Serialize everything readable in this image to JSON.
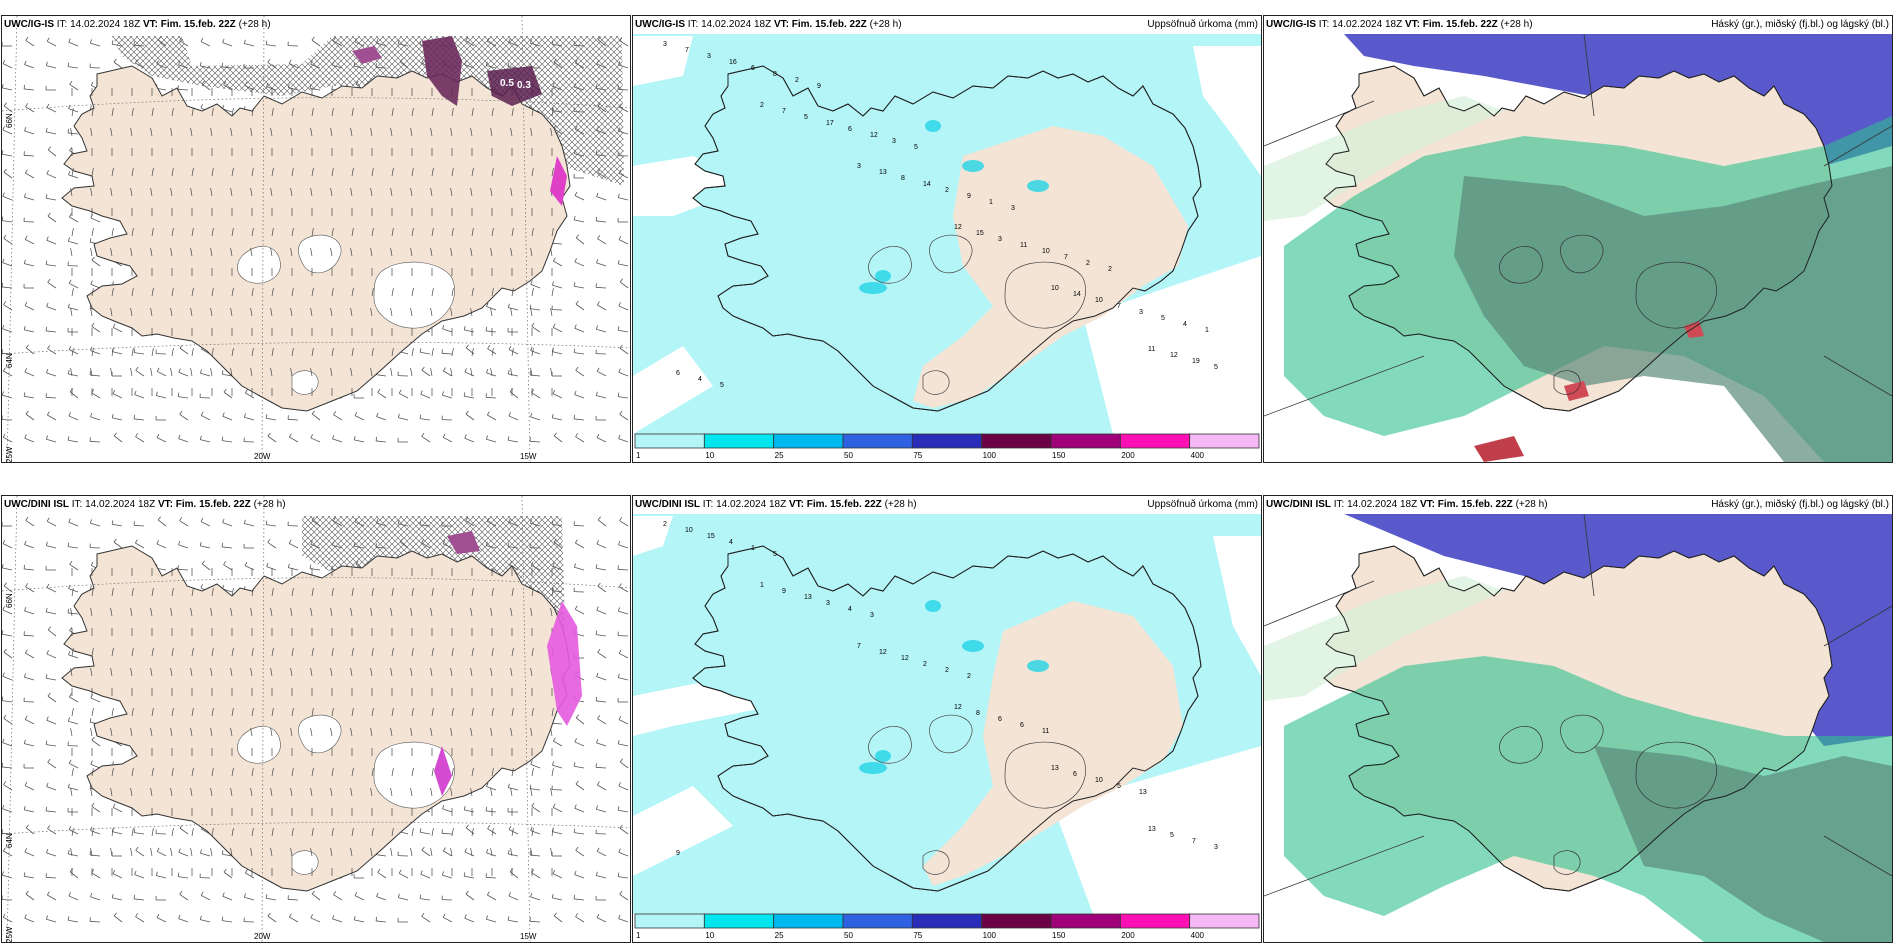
{
  "panels": [
    {
      "id": "p1",
      "model": "UWC/IG-IS",
      "it": "IT: 14.02.2024 18Z",
      "vt_label": "VT:",
      "vt": "Fim. 15.feb. 22Z",
      "lead": "(+28 h)",
      "right_title": "",
      "type": "wind"
    },
    {
      "id": "p2",
      "model": "UWC/IG-IS",
      "it": "IT: 14.02.2024 18Z",
      "vt_label": "VT:",
      "vt": "Fim. 15.feb. 22Z",
      "lead": "(+28 h)",
      "right_title": "Uppsöfnuð úrkoma (mm)",
      "type": "precip"
    },
    {
      "id": "p3",
      "model": "UWC/IG-IS",
      "it": "IT: 14.02.2024 18Z",
      "vt_label": "VT:",
      "vt": "Fim. 15.feb. 22Z",
      "lead": "(+28 h)",
      "right_title": "Háský (gr.), miðský (fj.bl.) og lágský (bl.)",
      "type": "cloud"
    },
    {
      "id": "p4",
      "model": "UWC/DINI ISL",
      "it": "IT: 14.02.2024 18Z",
      "vt_label": "VT:",
      "vt": "Fim. 15.feb. 22Z",
      "lead": "(+28 h)",
      "right_title": "",
      "type": "wind"
    },
    {
      "id": "p5",
      "model": "UWC/DINI ISL",
      "it": "IT: 14.02.2024 18Z",
      "vt_label": "VT:",
      "vt": "Fim. 15.feb. 22Z",
      "lead": "(+28 h)",
      "right_title": "Uppsöfnuð úrkoma (mm)",
      "type": "precip"
    },
    {
      "id": "p6",
      "model": "UWC/DINI ISL",
      "it": "IT: 14.02.2024 18Z",
      "vt_label": "VT:",
      "vt": "Fim. 15.feb. 22Z",
      "lead": "(+28 h)",
      "right_title": "Háský (gr.), miðský (fj.bl.) og lágský (bl.)",
      "type": "cloud"
    }
  ],
  "axis_labels": {
    "lat66": "66N",
    "lat64": "64N",
    "lon25": "25W",
    "lon20": "20W",
    "lon15": "15W"
  },
  "wind_values_top": [
    "0.5",
    "0.3"
  ],
  "colorbar": {
    "ticks": [
      "1",
      "10",
      "25",
      "50",
      "75",
      "100",
      "150",
      "200",
      "400"
    ],
    "colors": [
      "#b4f5f7",
      "#00e6ee",
      "#00b8f0",
      "#2f62e0",
      "#2a2db8",
      "#6b0045",
      "#a0007a",
      "#ff10b5",
      "#f5b8f5"
    ]
  },
  "precip_labels_top": [
    "3",
    "2",
    "3",
    "12",
    "10",
    "11",
    "7",
    "7",
    "13",
    "15",
    "14",
    "12",
    "3",
    "5",
    "8",
    "3",
    "10",
    "19",
    "16",
    "17",
    "14",
    "11",
    "7",
    "5",
    "6",
    "6",
    "2",
    "10",
    "3",
    "6",
    "8",
    "12",
    "9",
    "7",
    "5",
    "4",
    "2",
    "3",
    "1",
    "2",
    "4",
    "5",
    "9",
    "5",
    "3",
    "2",
    "1"
  ],
  "precip_labels_bottom": [
    "2",
    "1",
    "7",
    "12",
    "13",
    "13",
    "10",
    "9",
    "12",
    "8",
    "6",
    "5",
    "15",
    "13",
    "12",
    "6",
    "10",
    "7",
    "4",
    "3",
    "2",
    "6",
    "5",
    "3",
    "1",
    "4",
    "2",
    "11",
    "13",
    "9",
    "5",
    "3",
    "2"
  ],
  "colors": {
    "land": "#f3e4d6",
    "sea": "#ffffff",
    "precip_light": "#b4f5f7",
    "cloud_high": "#5150c8",
    "cloud_mid": "#2fbf8e",
    "cloud_low": "#5a8a7a"
  }
}
